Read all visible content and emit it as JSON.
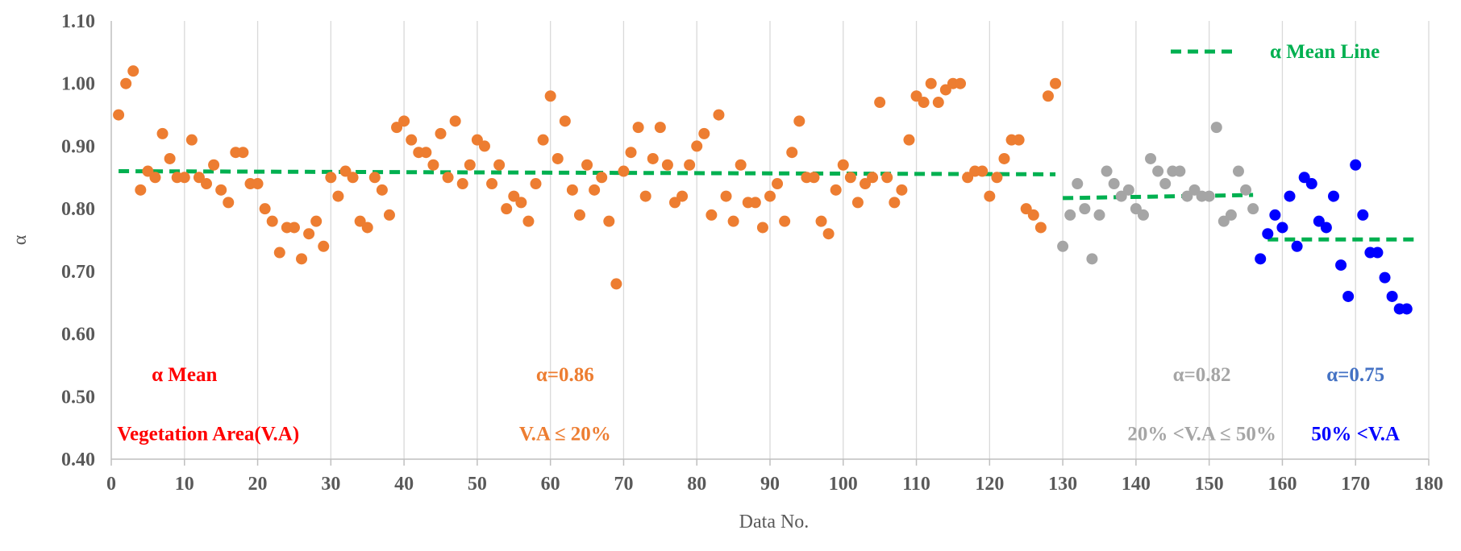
{
  "chart_data": {
    "type": "scatter",
    "title": "",
    "xlabel": "Data No.",
    "ylabel": "α",
    "xlim": [
      0,
      180
    ],
    "ylim": [
      0.4,
      1.1
    ],
    "x_ticks": [
      "0",
      "10",
      "20",
      "30",
      "40",
      "50",
      "60",
      "70",
      "80",
      "90",
      "100",
      "110",
      "120",
      "130",
      "140",
      "150",
      "160",
      "170",
      "180"
    ],
    "y_ticks": [
      "0.40",
      "0.50",
      "0.60",
      "0.70",
      "0.80",
      "0.90",
      "1.00",
      "1.10"
    ],
    "grid": "vertical",
    "legend": {
      "position": "top-right",
      "label": "α Mean Line",
      "color": "#00B050"
    },
    "series": [
      {
        "name": "V.A ≤ 20%",
        "color": "#ED7D31",
        "points": [
          [
            1,
            0.95
          ],
          [
            2,
            1.0
          ],
          [
            3,
            1.02
          ],
          [
            4,
            0.83
          ],
          [
            5,
            0.86
          ],
          [
            6,
            0.85
          ],
          [
            7,
            0.92
          ],
          [
            8,
            0.88
          ],
          [
            9,
            0.85
          ],
          [
            10,
            0.85
          ],
          [
            11,
            0.91
          ],
          [
            12,
            0.85
          ],
          [
            13,
            0.84
          ],
          [
            14,
            0.87
          ],
          [
            15,
            0.83
          ],
          [
            16,
            0.81
          ],
          [
            17,
            0.89
          ],
          [
            18,
            0.89
          ],
          [
            19,
            0.84
          ],
          [
            20,
            0.84
          ],
          [
            21,
            0.8
          ],
          [
            22,
            0.78
          ],
          [
            23,
            0.73
          ],
          [
            24,
            0.77
          ],
          [
            25,
            0.77
          ],
          [
            26,
            0.72
          ],
          [
            27,
            0.76
          ],
          [
            28,
            0.78
          ],
          [
            29,
            0.74
          ],
          [
            30,
            0.85
          ],
          [
            31,
            0.82
          ],
          [
            32,
            0.86
          ],
          [
            33,
            0.85
          ],
          [
            34,
            0.78
          ],
          [
            35,
            0.77
          ],
          [
            36,
            0.85
          ],
          [
            37,
            0.83
          ],
          [
            38,
            0.79
          ],
          [
            39,
            0.93
          ],
          [
            40,
            0.94
          ],
          [
            41,
            0.91
          ],
          [
            42,
            0.89
          ],
          [
            43,
            0.89
          ],
          [
            44,
            0.87
          ],
          [
            45,
            0.92
          ],
          [
            46,
            0.85
          ],
          [
            47,
            0.94
          ],
          [
            48,
            0.84
          ],
          [
            49,
            0.87
          ],
          [
            50,
            0.91
          ],
          [
            51,
            0.9
          ],
          [
            52,
            0.84
          ],
          [
            53,
            0.87
          ],
          [
            54,
            0.8
          ],
          [
            55,
            0.82
          ],
          [
            56,
            0.81
          ],
          [
            57,
            0.78
          ],
          [
            58,
            0.84
          ],
          [
            59,
            0.91
          ],
          [
            60,
            0.98
          ],
          [
            61,
            0.88
          ],
          [
            62,
            0.94
          ],
          [
            63,
            0.83
          ],
          [
            64,
            0.79
          ],
          [
            65,
            0.87
          ],
          [
            66,
            0.83
          ],
          [
            67,
            0.85
          ],
          [
            68,
            0.78
          ],
          [
            69,
            0.68
          ],
          [
            70,
            0.86
          ],
          [
            71,
            0.89
          ],
          [
            72,
            0.93
          ],
          [
            73,
            0.82
          ],
          [
            74,
            0.88
          ],
          [
            75,
            0.93
          ],
          [
            76,
            0.87
          ],
          [
            77,
            0.81
          ],
          [
            78,
            0.82
          ],
          [
            79,
            0.87
          ],
          [
            80,
            0.9
          ],
          [
            81,
            0.92
          ],
          [
            82,
            0.79
          ],
          [
            83,
            0.95
          ],
          [
            84,
            0.82
          ],
          [
            85,
            0.78
          ],
          [
            86,
            0.87
          ],
          [
            87,
            0.81
          ],
          [
            88,
            0.81
          ],
          [
            89,
            0.77
          ],
          [
            90,
            0.82
          ],
          [
            91,
            0.84
          ],
          [
            92,
            0.78
          ],
          [
            93,
            0.89
          ],
          [
            94,
            0.94
          ],
          [
            95,
            0.85
          ],
          [
            96,
            0.85
          ],
          [
            97,
            0.78
          ],
          [
            98,
            0.76
          ],
          [
            99,
            0.83
          ],
          [
            100,
            0.87
          ],
          [
            101,
            0.85
          ],
          [
            102,
            0.81
          ],
          [
            103,
            0.84
          ],
          [
            104,
            0.85
          ],
          [
            105,
            0.97
          ],
          [
            106,
            0.85
          ],
          [
            107,
            0.81
          ],
          [
            108,
            0.83
          ],
          [
            109,
            0.91
          ],
          [
            110,
            0.98
          ],
          [
            111,
            0.97
          ],
          [
            112,
            1.0
          ],
          [
            113,
            0.97
          ],
          [
            114,
            0.99
          ],
          [
            115,
            1.0
          ],
          [
            116,
            1.0
          ],
          [
            117,
            0.85
          ],
          [
            118,
            0.86
          ],
          [
            119,
            0.86
          ],
          [
            120,
            0.82
          ],
          [
            121,
            0.85
          ],
          [
            122,
            0.88
          ],
          [
            123,
            0.91
          ],
          [
            124,
            0.91
          ],
          [
            125,
            0.8
          ],
          [
            126,
            0.79
          ],
          [
            127,
            0.77
          ],
          [
            128,
            0.98
          ],
          [
            129,
            1.0
          ]
        ]
      },
      {
        "name": "20% <V.A ≤ 50%",
        "color": "#A5A5A5",
        "points": [
          [
            130,
            0.74
          ],
          [
            131,
            0.79
          ],
          [
            132,
            0.84
          ],
          [
            133,
            0.8
          ],
          [
            134,
            0.72
          ],
          [
            135,
            0.79
          ],
          [
            136,
            0.86
          ],
          [
            137,
            0.84
          ],
          [
            138,
            0.82
          ],
          [
            139,
            0.83
          ],
          [
            140,
            0.8
          ],
          [
            141,
            0.79
          ],
          [
            142,
            0.88
          ],
          [
            143,
            0.86
          ],
          [
            144,
            0.84
          ],
          [
            145,
            0.86
          ],
          [
            146,
            0.86
          ],
          [
            147,
            0.82
          ],
          [
            148,
            0.83
          ],
          [
            149,
            0.82
          ],
          [
            150,
            0.82
          ],
          [
            151,
            0.93
          ],
          [
            152,
            0.78
          ],
          [
            153,
            0.79
          ],
          [
            154,
            0.86
          ],
          [
            155,
            0.83
          ],
          [
            156,
            0.8
          ]
        ]
      },
      {
        "name": "50% <V.A",
        "color": "#0000FF",
        "points": [
          [
            157,
            0.72
          ],
          [
            158,
            0.76
          ],
          [
            159,
            0.79
          ],
          [
            160,
            0.77
          ],
          [
            161,
            0.82
          ],
          [
            162,
            0.74
          ],
          [
            163,
            0.85
          ],
          [
            164,
            0.84
          ],
          [
            165,
            0.78
          ],
          [
            166,
            0.77
          ],
          [
            167,
            0.82
          ],
          [
            168,
            0.71
          ],
          [
            169,
            0.66
          ],
          [
            170,
            0.87
          ],
          [
            171,
            0.79
          ],
          [
            172,
            0.73
          ],
          [
            173,
            0.73
          ],
          [
            174,
            0.69
          ],
          [
            175,
            0.66
          ],
          [
            176,
            0.64
          ],
          [
            177,
            0.64
          ]
        ]
      }
    ],
    "mean_lines": [
      {
        "x1": 1,
        "x2": 129,
        "y1": 0.86,
        "y2": 0.855
      },
      {
        "x1": 130,
        "x2": 156,
        "y1": 0.817,
        "y2": 0.822
      },
      {
        "x1": 158,
        "x2": 178,
        "y1": 0.751,
        "y2": 0.751
      }
    ],
    "annotations": [
      {
        "name": "annotation-alpha-mean-title",
        "text": "α Mean",
        "color": "#FF0000",
        "x": 10,
        "y": 0.525,
        "anchor": "middle"
      },
      {
        "name": "annotation-vegetation-area-title",
        "text": "Vegetation Area(V.A)",
        "color": "#FF0000",
        "x": 0.8,
        "y": 0.43,
        "anchor": "start"
      },
      {
        "name": "annotation-alpha-086",
        "text": "α=0.86",
        "color": "#ED7D31",
        "x": 62,
        "y": 0.525,
        "anchor": "middle"
      },
      {
        "name": "annotation-va-le-20",
        "text": "V.A ≤  20%",
        "color": "#ED7D31",
        "x": 62,
        "y": 0.43,
        "anchor": "middle"
      },
      {
        "name": "annotation-alpha-082",
        "text": "α=0.82",
        "color": "#A5A5A5",
        "x": 149,
        "y": 0.525,
        "anchor": "middle"
      },
      {
        "name": "annotation-va-20-50",
        "text": "20% <V.A ≤  50%",
        "color": "#A5A5A5",
        "x": 149,
        "y": 0.43,
        "anchor": "middle"
      },
      {
        "name": "annotation-alpha-075",
        "text": "α=0.75",
        "color": "#4472C4",
        "x": 170,
        "y": 0.525,
        "anchor": "middle"
      },
      {
        "name": "annotation-va-gt-50",
        "text": "50% <V.A",
        "color": "#0000FF",
        "x": 170,
        "y": 0.43,
        "anchor": "middle"
      }
    ]
  }
}
